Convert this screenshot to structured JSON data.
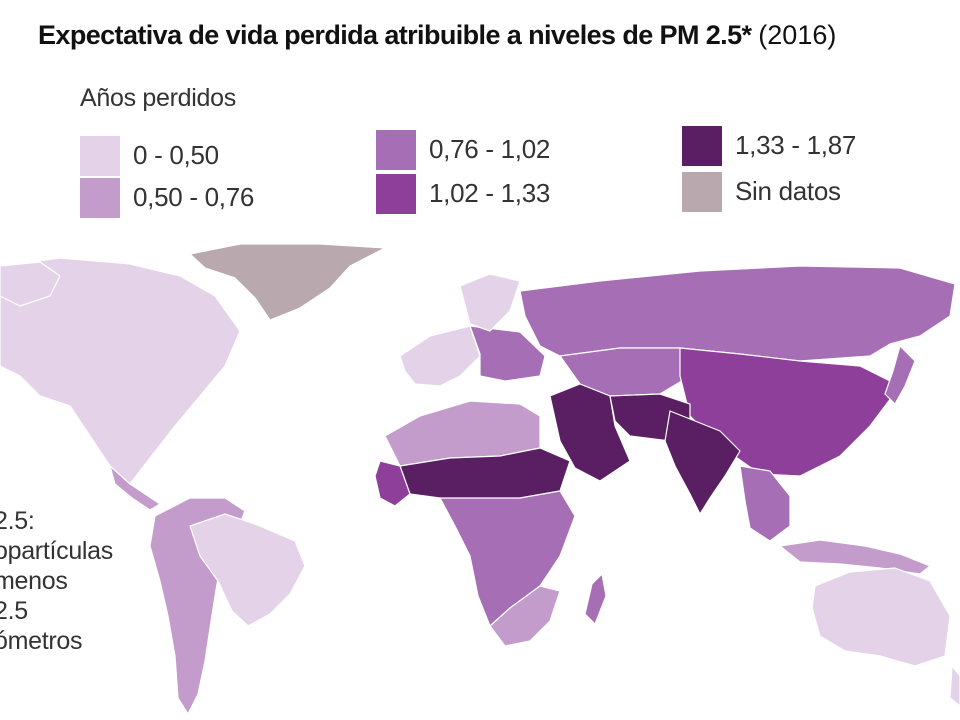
{
  "title": {
    "main": "Expectativa de vida perdida atribuible a niveles de PM 2.5*",
    "year": "(2016)"
  },
  "legend": {
    "title": "Años perdidos",
    "items": [
      {
        "label": "0 - 0,50",
        "color": "#e4d3e8"
      },
      {
        "label": "0,50 - 0,76",
        "color": "#c39ccc"
      },
      {
        "label": "0,76 - 1,02",
        "color": "#a66eb4"
      },
      {
        "label": "1,02 - 1,33",
        "color": "#8d3f99"
      },
      {
        "label": "1,33 - 1,87",
        "color": "#5a1e62"
      },
      {
        "label": "Sin datos",
        "color": "#b9a8ad"
      }
    ]
  },
  "footnote": [
    "2.5:",
    "opartículas",
    "menos",
    "2.5",
    "ómetros"
  ]
}
